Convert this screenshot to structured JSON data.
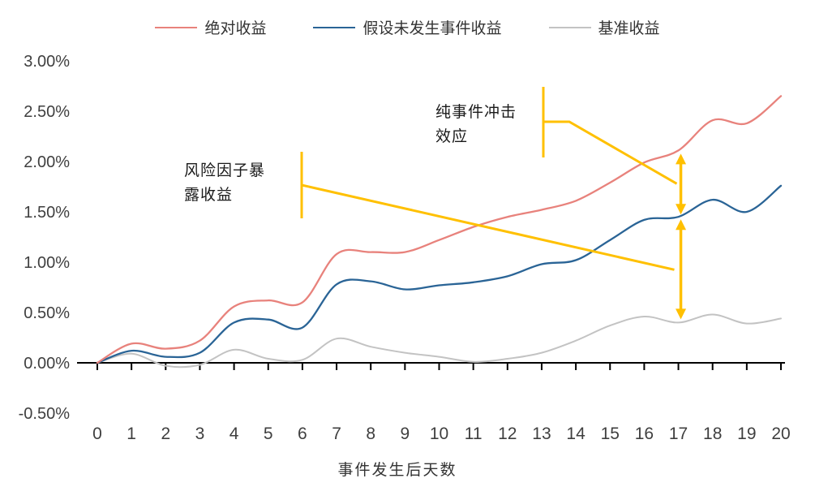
{
  "chart_data": {
    "type": "line",
    "x": [
      0,
      1,
      2,
      3,
      4,
      5,
      6,
      7,
      8,
      9,
      10,
      11,
      12,
      13,
      14,
      15,
      16,
      17,
      18,
      19,
      20
    ],
    "series": [
      {
        "name": "绝对收益",
        "color": "#E8827C",
        "values": [
          0.0,
          0.19,
          0.14,
          0.22,
          0.56,
          0.62,
          0.6,
          1.08,
          1.1,
          1.1,
          1.22,
          1.35,
          1.45,
          1.52,
          1.61,
          1.79,
          1.99,
          2.11,
          2.41,
          2.38,
          2.65
        ]
      },
      {
        "name": "假设未发生事件收益",
        "color": "#2A6496",
        "values": [
          0.0,
          0.12,
          0.06,
          0.1,
          0.4,
          0.43,
          0.35,
          0.78,
          0.81,
          0.73,
          0.77,
          0.8,
          0.86,
          0.98,
          1.02,
          1.22,
          1.42,
          1.45,
          1.62,
          1.5,
          1.76
        ]
      },
      {
        "name": "基准收益",
        "color": "#C3C3C3",
        "values": [
          0.0,
          0.09,
          -0.03,
          -0.02,
          0.13,
          0.04,
          0.03,
          0.24,
          0.16,
          0.1,
          0.06,
          0.01,
          0.04,
          0.1,
          0.22,
          0.37,
          0.46,
          0.4,
          0.48,
          0.39,
          0.44
        ]
      }
    ],
    "xlabel": "事件发生后天数",
    "ylabel": "",
    "title": "",
    "ylim": [
      -0.5,
      3.0
    ],
    "ytick_step": 0.5,
    "ytick_format": "0.00%",
    "xticks": [
      0,
      1,
      2,
      3,
      4,
      5,
      6,
      7,
      8,
      9,
      10,
      11,
      12,
      13,
      14,
      15,
      16,
      17,
      18,
      19,
      20
    ],
    "grid": false,
    "legend_position": "top",
    "annotation_color": "#FFC000",
    "annotations": [
      {
        "text": "风险因子暴露收益",
        "measures_gap_between": [
          "假设未发生事件收益",
          "基准收益"
        ],
        "at_x": 17
      },
      {
        "text": "纯事件冲击效应",
        "measures_gap_between": [
          "绝对收益",
          "假设未发生事件收益"
        ],
        "at_x": 17
      }
    ]
  }
}
